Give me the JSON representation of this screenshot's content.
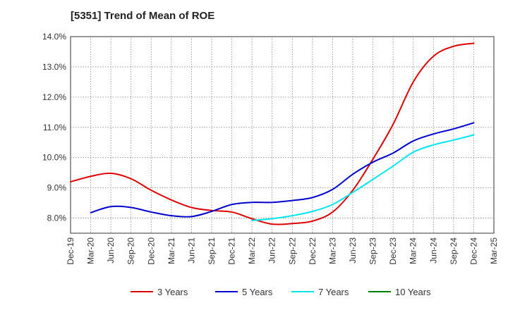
{
  "chart_data": {
    "type": "line",
    "title": "[5351]  Trend of Mean of ROE",
    "xlabel": "",
    "ylabel": "",
    "x": [
      "Dec-19",
      "Mar-20",
      "Jun-20",
      "Sep-20",
      "Dec-20",
      "Mar-21",
      "Jun-21",
      "Sep-21",
      "Dec-21",
      "Mar-22",
      "Jun-22",
      "Sep-22",
      "Dec-22",
      "Mar-23",
      "Jun-23",
      "Sep-23",
      "Dec-23",
      "Mar-24",
      "Jun-24",
      "Sep-24",
      "Dec-24",
      "Mar-25"
    ],
    "y_ticks": [
      "8.0%",
      "9.0%",
      "10.0%",
      "11.0%",
      "12.0%",
      "13.0%",
      "14.0%"
    ],
    "ylim": [
      7.5,
      14.0
    ],
    "grid": true,
    "legend_position": "bottom",
    "series": [
      {
        "name": "3 Years",
        "color": "#dd0000",
        "values": [
          9.2,
          9.38,
          9.48,
          9.3,
          8.92,
          8.6,
          8.35,
          8.25,
          8.2,
          7.98,
          7.8,
          7.82,
          7.9,
          8.2,
          8.92,
          9.95,
          11.1,
          12.5,
          13.35,
          13.68,
          13.78,
          null
        ]
      },
      {
        "name": "5 Years",
        "color": "#0000cc",
        "values": [
          null,
          8.18,
          8.38,
          8.35,
          8.2,
          8.08,
          8.05,
          8.22,
          8.45,
          8.52,
          8.52,
          8.58,
          8.68,
          8.95,
          9.45,
          9.85,
          10.15,
          10.55,
          10.78,
          10.95,
          11.15,
          null
        ]
      },
      {
        "name": "7 Years",
        "color": "#00e5ee",
        "values": [
          null,
          null,
          null,
          null,
          null,
          null,
          null,
          null,
          null,
          7.92,
          7.98,
          8.08,
          8.22,
          8.45,
          8.85,
          9.28,
          9.72,
          10.18,
          10.42,
          10.58,
          10.75,
          null
        ]
      },
      {
        "name": "10 Years",
        "color": "#008000",
        "values": [
          null,
          null,
          null,
          null,
          null,
          null,
          null,
          null,
          null,
          null,
          null,
          null,
          null,
          null,
          null,
          null,
          null,
          null,
          null,
          null,
          null,
          null
        ]
      }
    ]
  }
}
